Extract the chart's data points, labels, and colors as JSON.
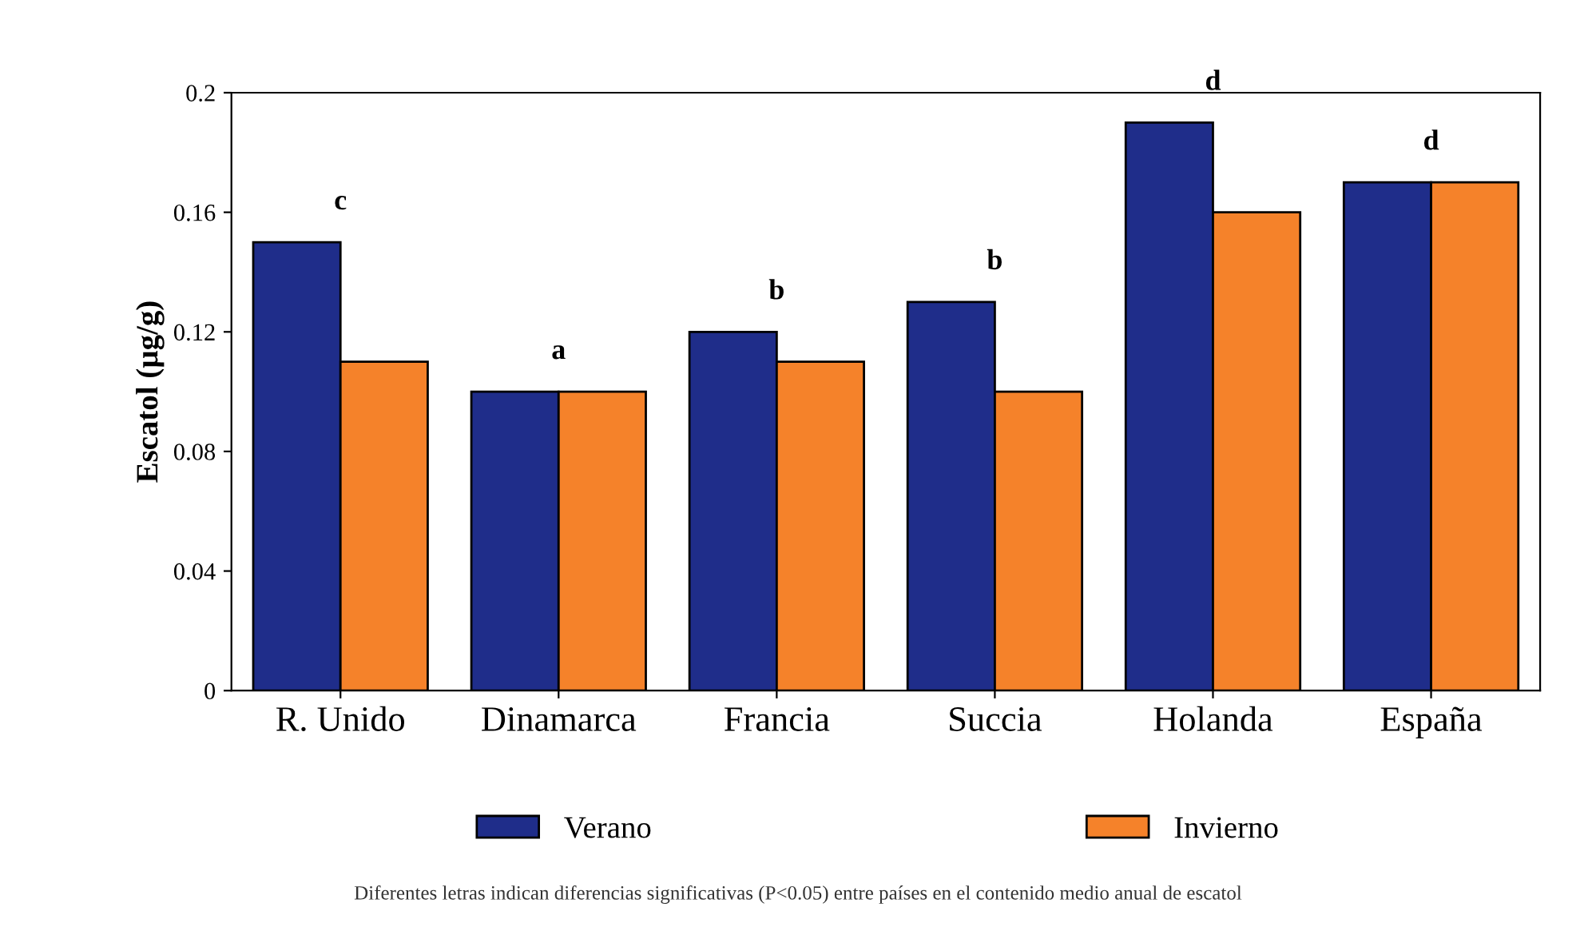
{
  "chart_data": {
    "type": "bar",
    "ylabel": "Escatol (µg/g)",
    "categories": [
      "R. Unido",
      "Dinamarca",
      "Francia",
      "Succia",
      "Holanda",
      "España"
    ],
    "series": [
      {
        "name": "Verano",
        "color": "#1f2d8a",
        "values": [
          0.15,
          0.1,
          0.12,
          0.13,
          0.19,
          0.17
        ]
      },
      {
        "name": "Invierno",
        "color": "#f5822a",
        "values": [
          0.11,
          0.1,
          0.11,
          0.1,
          0.16,
          0.17
        ]
      }
    ],
    "ylim": [
      0,
      0.2
    ],
    "yticks": [
      0,
      0.04,
      0.08,
      0.12,
      0.16,
      0.2
    ],
    "grid": false,
    "legend": "bottom",
    "annotations": [
      "c",
      "a",
      "b",
      "b",
      "d",
      "d",
      "Diferentes letras indican diferencias significativas (P<0.05) entre países en el contenido medio anual de escatol"
    ]
  }
}
